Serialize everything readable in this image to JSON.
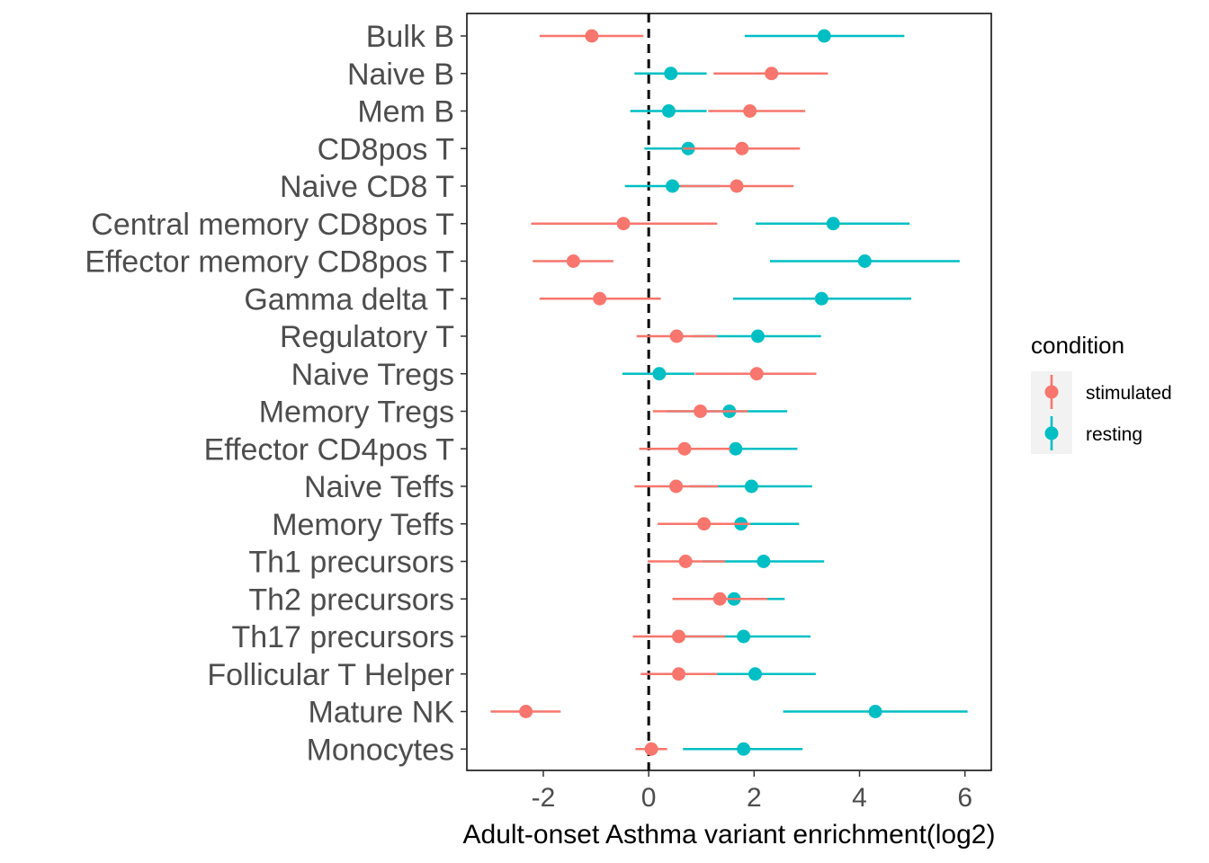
{
  "chart_data": {
    "type": "scatter",
    "subtype": "point-range (dot with confidence interval)",
    "title": "",
    "xlabel": "Adult-onset Asthma variant enrichment(log2)",
    "ylabel": "",
    "xlim": [
      -3.45,
      6.5
    ],
    "xticks": [
      -2,
      0,
      2,
      4,
      6
    ],
    "xtick_labels": [
      "-2",
      "0",
      "2",
      "4",
      "6"
    ],
    "reference_line": {
      "x": 0,
      "style": "dashed",
      "color": "#000000"
    },
    "grid": false,
    "legend": {
      "title": "condition",
      "position": "right"
    },
    "categories": [
      "Bulk B",
      "Naive B",
      "Mem B",
      "CD8pos T",
      "Naive CD8 T",
      "Central memory CD8pos T",
      "Effector memory CD8pos T",
      "Gamma delta T",
      "Regulatory T",
      "Naive Tregs",
      "Memory Tregs",
      "Effector CD4pos T",
      "Naive Teffs",
      "Memory Teffs",
      "Th1 precursors",
      "Th2 precursors",
      "Th17 precursors",
      "Follicular T Helper",
      "Mature NK",
      "Monocytes"
    ],
    "series": [
      {
        "name": "resting",
        "color": "#00bfc4",
        "values": [
          3.33,
          0.42,
          0.38,
          0.75,
          0.45,
          3.5,
          4.1,
          3.28,
          2.07,
          0.2,
          1.53,
          1.65,
          1.95,
          1.75,
          2.18,
          1.62,
          1.8,
          2.02,
          4.3,
          1.8
        ],
        "lower": [
          1.82,
          -0.27,
          -0.35,
          -0.08,
          -0.45,
          2.03,
          2.3,
          1.6,
          0.83,
          -0.5,
          0.35,
          0.5,
          0.78,
          0.6,
          1.02,
          0.65,
          0.52,
          0.85,
          2.55,
          0.65
        ],
        "upper": [
          4.85,
          1.1,
          1.1,
          1.58,
          1.35,
          4.95,
          5.9,
          4.98,
          3.27,
          0.87,
          2.63,
          2.82,
          3.1,
          2.85,
          3.33,
          2.58,
          3.07,
          3.17,
          6.05,
          2.92
        ]
      },
      {
        "name": "stimulated",
        "color": "#f8766d",
        "values": [
          -1.08,
          2.33,
          1.92,
          1.77,
          1.67,
          -0.48,
          -1.43,
          -0.93,
          0.53,
          2.05,
          0.98,
          0.68,
          0.52,
          1.05,
          0.7,
          1.35,
          0.57,
          0.57,
          -2.33,
          0.05
        ],
        "lower": [
          -2.07,
          1.23,
          1.13,
          0.65,
          0.6,
          -2.23,
          -2.2,
          -2.07,
          -0.23,
          0.88,
          0.08,
          -0.18,
          -0.27,
          0.17,
          -0.02,
          0.45,
          -0.3,
          -0.15,
          -3.0,
          -0.25
        ],
        "upper": [
          -0.1,
          3.4,
          2.97,
          2.87,
          2.75,
          1.3,
          -0.67,
          0.23,
          1.3,
          3.18,
          1.88,
          1.55,
          1.32,
          1.93,
          1.45,
          2.25,
          1.45,
          1.3,
          -1.67,
          0.35
        ]
      }
    ]
  },
  "legend_items": [
    {
      "label": "stimulated",
      "color": "#f8766d"
    },
    {
      "label": "resting",
      "color": "#00bfc4"
    }
  ]
}
